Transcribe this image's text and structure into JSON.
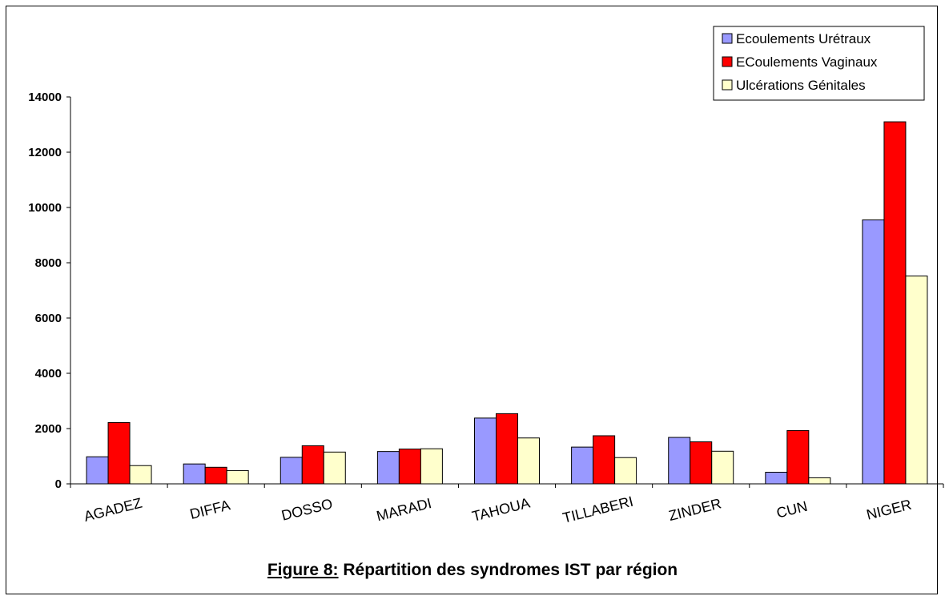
{
  "chart_data": {
    "type": "bar",
    "title": "",
    "xlabel": "",
    "ylabel": "",
    "ylim": [
      0,
      14000
    ],
    "yticks": [
      0,
      2000,
      4000,
      6000,
      8000,
      10000,
      12000,
      14000
    ],
    "grid": false,
    "legend_position": "top-right",
    "categories": [
      "AGADEZ",
      "DIFFA",
      "DOSSO",
      "MARADI",
      "TAHOUA",
      "TILLABERI",
      "ZINDER",
      "CUN",
      "NIGER"
    ],
    "series": [
      {
        "name": "Ecoulements Urétraux",
        "color": "#9999ff",
        "values": [
          980,
          720,
          960,
          1170,
          2380,
          1330,
          1680,
          420,
          9550
        ]
      },
      {
        "name": "ECoulements Vaginaux",
        "color": "#ff0000",
        "values": [
          2220,
          600,
          1380,
          1260,
          2540,
          1740,
          1520,
          1930,
          13100
        ]
      },
      {
        "name": "Ulcérations Génitales",
        "color": "#ffffcc",
        "values": [
          660,
          480,
          1150,
          1270,
          1660,
          950,
          1180,
          220,
          7520
        ]
      }
    ]
  },
  "caption": {
    "label": "Figure 8:",
    "text": " Répartition des syndromes IST par région"
  }
}
